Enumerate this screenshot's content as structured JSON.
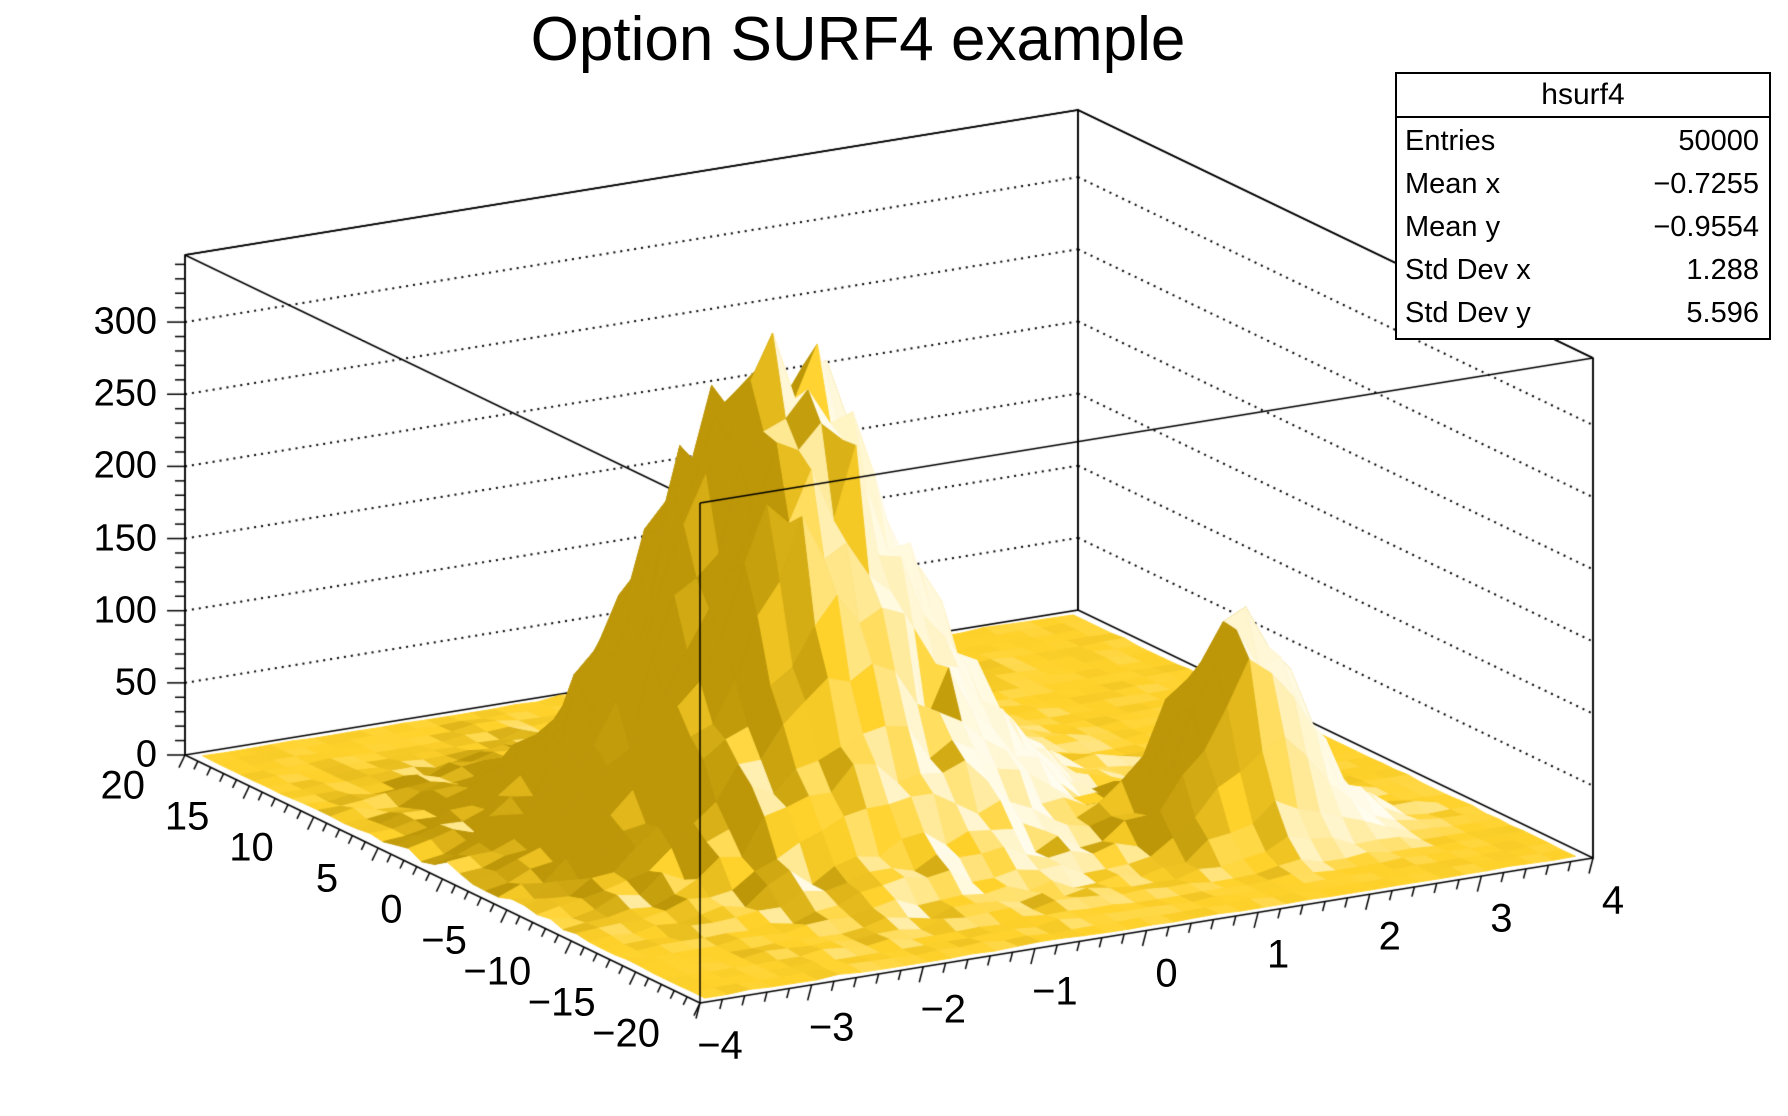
{
  "title": "Option SURF4 example",
  "stats_box": {
    "name": "hsurf4",
    "rows": [
      {
        "label": "Entries",
        "value": "50000"
      },
      {
        "label": "Mean x",
        "value": "−0.7255"
      },
      {
        "label": "Mean y",
        "value": "−0.9554"
      },
      {
        "label": "Std Dev x",
        "value": "1.288"
      },
      {
        "label": "Std Dev y",
        "value": "5.596"
      }
    ]
  },
  "chart_data": {
    "type": "surface",
    "surface_option": "SURF4",
    "title": "Option SURF4 example",
    "histogram_name": "hsurf4",
    "entries": 50000,
    "x_axis": {
      "min": -4,
      "max": 4,
      "tick_step": 1,
      "minor_per_major": 5,
      "tick_labels": [
        "−4",
        "−3",
        "−2",
        "−1",
        "0",
        "1",
        "2",
        "3",
        "4"
      ]
    },
    "y_axis": {
      "min": -20,
      "max": 20,
      "tick_step": 5,
      "minor_per_major": 5,
      "tick_labels": [
        "20",
        "15",
        "10",
        "5",
        "0",
        "−5",
        "−10",
        "−15",
        "−20"
      ]
    },
    "z_axis": {
      "min": 0,
      "tick_max": 300,
      "tick_step": 50,
      "minor_step": 10,
      "box_max": 346.5,
      "grid": true,
      "tick_labels": [
        "0",
        "50",
        "100",
        "150",
        "200",
        "250",
        "300"
      ]
    },
    "bins": {
      "nx": 40,
      "ny": 40,
      "bin_width_x": 0.2,
      "bin_width_y": 1.0
    },
    "peaks": [
      {
        "amplitude": 318,
        "mean_x": -1.0,
        "sigma_x": 1.0,
        "mean_y": 0.0,
        "sigma_y": 5.0
      },
      {
        "amplitude": 152,
        "mean_x": 2.0,
        "sigma_x": 0.5,
        "mean_y": -10.0,
        "sigma_y": 2.0
      }
    ],
    "noise": {
      "model": "poisson_like",
      "scale": 1.0,
      "seed": 1337
    },
    "colors": {
      "background": "#ffffff",
      "line": "#000000",
      "surface_base": "#ffd22b",
      "surface_dark": "#bd9708",
      "surface_highlight": "#fffdf0"
    },
    "legend_position": "none",
    "stats_position": "top-right"
  }
}
